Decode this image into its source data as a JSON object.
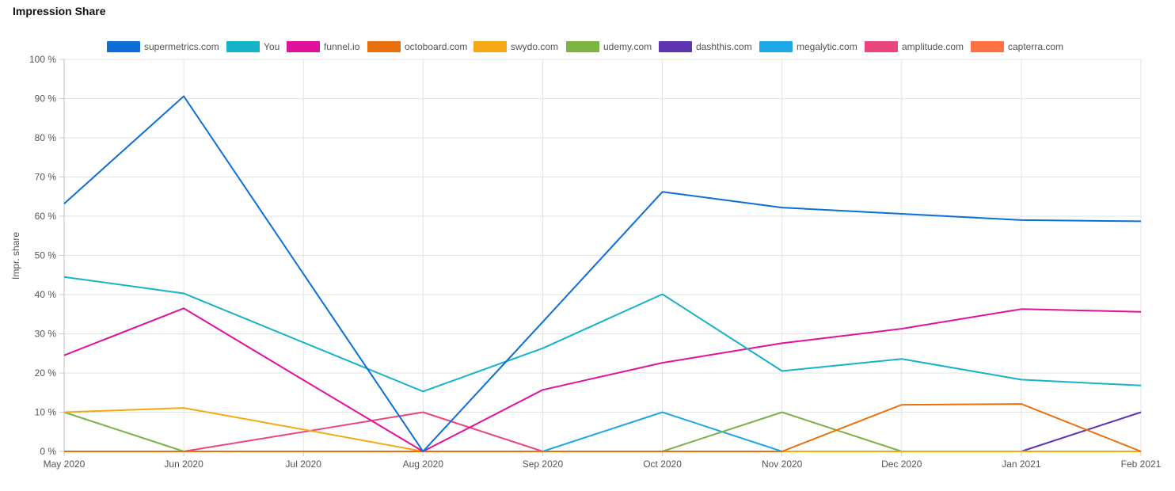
{
  "page": {
    "title": "Impression Share"
  },
  "chart_data": {
    "type": "line",
    "title": "Impression Share",
    "xlabel": "",
    "ylabel": "Impr. share",
    "ylim": [
      0,
      100
    ],
    "y_ticks": [
      "0 %",
      "10 %",
      "20 %",
      "30 %",
      "40 %",
      "50 %",
      "60 %",
      "70 %",
      "80 %",
      "90 %",
      "100 %"
    ],
    "y_tick_values": [
      0,
      10,
      20,
      30,
      40,
      50,
      60,
      70,
      80,
      90,
      100
    ],
    "categories": [
      "May 2020",
      "Jun 2020",
      "Jul 2020",
      "Aug 2020",
      "Sep 2020",
      "Oct 2020",
      "Nov 2020",
      "Dec 2020",
      "Jan 2021",
      "Feb 2021"
    ],
    "grid": true,
    "legend_position": "top",
    "series": [
      {
        "name": "supermetrics.com",
        "color": "#0d6fd6",
        "values": [
          63.2,
          90.6,
          45.3,
          0,
          33.0,
          66.2,
          62.2,
          60.6,
          59.0,
          58.7
        ]
      },
      {
        "name": "You",
        "color": "#14b3c8",
        "values": [
          44.5,
          40.3,
          27.8,
          15.3,
          26.3,
          40.1,
          20.5,
          23.6,
          18.3,
          16.8
        ]
      },
      {
        "name": "funnel.io",
        "color": "#e0119d",
        "values": [
          24.5,
          36.5,
          18.2,
          0,
          15.7,
          22.6,
          27.6,
          31.3,
          36.3,
          35.6
        ]
      },
      {
        "name": "octoboard.com",
        "color": "#e8700f",
        "values": [
          0,
          0,
          0,
          0,
          0,
          0,
          0,
          11.9,
          12.1,
          0
        ]
      },
      {
        "name": "swydo.com",
        "color": "#f4a812",
        "values": [
          10.0,
          11.1,
          5.6,
          0,
          0,
          0,
          0,
          0,
          0,
          0
        ]
      },
      {
        "name": "udemy.com",
        "color": "#7cb342",
        "values": [
          10.0,
          0,
          0,
          0,
          0,
          0,
          10.0,
          0,
          0,
          0
        ]
      },
      {
        "name": "dashthis.com",
        "color": "#5e35b1",
        "values": [
          0,
          0,
          0,
          0,
          0,
          0,
          0,
          0,
          0,
          10.0
        ]
      },
      {
        "name": "megalytic.com",
        "color": "#1ea8e8",
        "values": [
          0,
          0,
          0,
          0,
          0,
          10.0,
          0,
          0,
          0,
          0
        ]
      },
      {
        "name": "amplitude.com",
        "color": "#e8467c",
        "values": [
          0,
          0,
          5.0,
          10.0,
          0,
          0,
          0,
          0,
          0,
          0
        ]
      },
      {
        "name": "capterra.com",
        "color": "#ff7043",
        "values": [
          0,
          0,
          0,
          0,
          0,
          0,
          0,
          0,
          0,
          0
        ]
      }
    ]
  }
}
